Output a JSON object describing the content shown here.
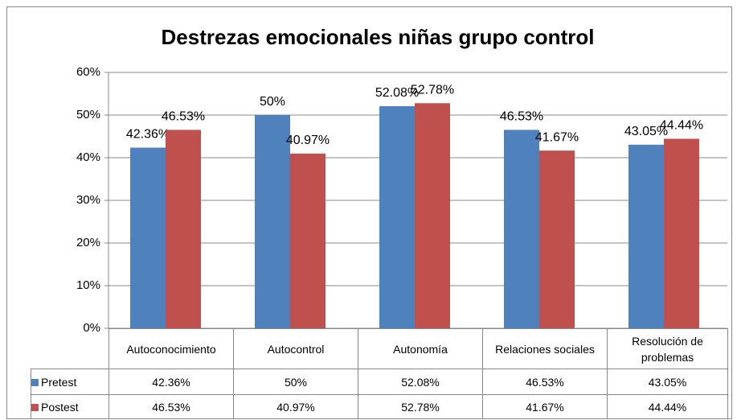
{
  "chart_data": {
    "type": "bar",
    "title": "Destrezas emocionales niñas grupo control",
    "categories": [
      "Autoconocimiento",
      "Autocontrol",
      "Autonomía",
      "Relaciones sociales",
      "Resolución de problemas"
    ],
    "series": [
      {
        "name": "Pretest",
        "color": "#4f81bd",
        "values": [
          42.36,
          50,
          52.08,
          46.53,
          43.05
        ],
        "value_labels": [
          "42.36%",
          "50%",
          "52.08%",
          "46.53%",
          "43.05%"
        ]
      },
      {
        "name": "Postest",
        "color": "#c0504d",
        "values": [
          46.53,
          40.97,
          52.78,
          41.67,
          44.44
        ],
        "value_labels": [
          "46.53%",
          "40.97%",
          "52.78%",
          "41.67%",
          "44.44%"
        ]
      }
    ],
    "ylim": [
      0,
      60
    ],
    "yticks": [
      {
        "value": 0,
        "label": "0%"
      },
      {
        "value": 10,
        "label": "10%"
      },
      {
        "value": 20,
        "label": "20%"
      },
      {
        "value": 30,
        "label": "30%"
      },
      {
        "value": 40,
        "label": "40%"
      },
      {
        "value": 50,
        "label": "50%"
      },
      {
        "value": 60,
        "label": "60%"
      }
    ],
    "grid": true
  }
}
